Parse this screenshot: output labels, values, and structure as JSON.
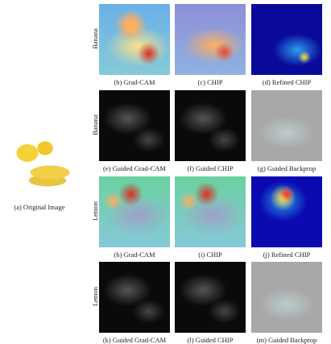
{
  "figure": {
    "original": {
      "caption": "(a) Original Image"
    },
    "rows": [
      {
        "label": "Banana",
        "panels": [
          {
            "caption": "(b) Grad-CAM"
          },
          {
            "caption": "(c) CHIP"
          },
          {
            "caption": "(d) Refined CHIP"
          }
        ]
      },
      {
        "label": "Banana",
        "panels": [
          {
            "caption": "(e) Guided Grad-CAM"
          },
          {
            "caption": "(f) Guided CHIP"
          },
          {
            "caption": "(g) Guided Backprop"
          }
        ]
      },
      {
        "label": "Lemon",
        "panels": [
          {
            "caption": "(h) Grad-CAM"
          },
          {
            "caption": "(i) CHIP"
          },
          {
            "caption": "(j) Refined CHIP"
          }
        ]
      },
      {
        "label": "Lemon",
        "panels": [
          {
            "caption": "(k) Guided Grad-CAM"
          },
          {
            "caption": "(l) Guided CHIP"
          },
          {
            "caption": "(m) Guided Backprop"
          }
        ]
      }
    ]
  }
}
